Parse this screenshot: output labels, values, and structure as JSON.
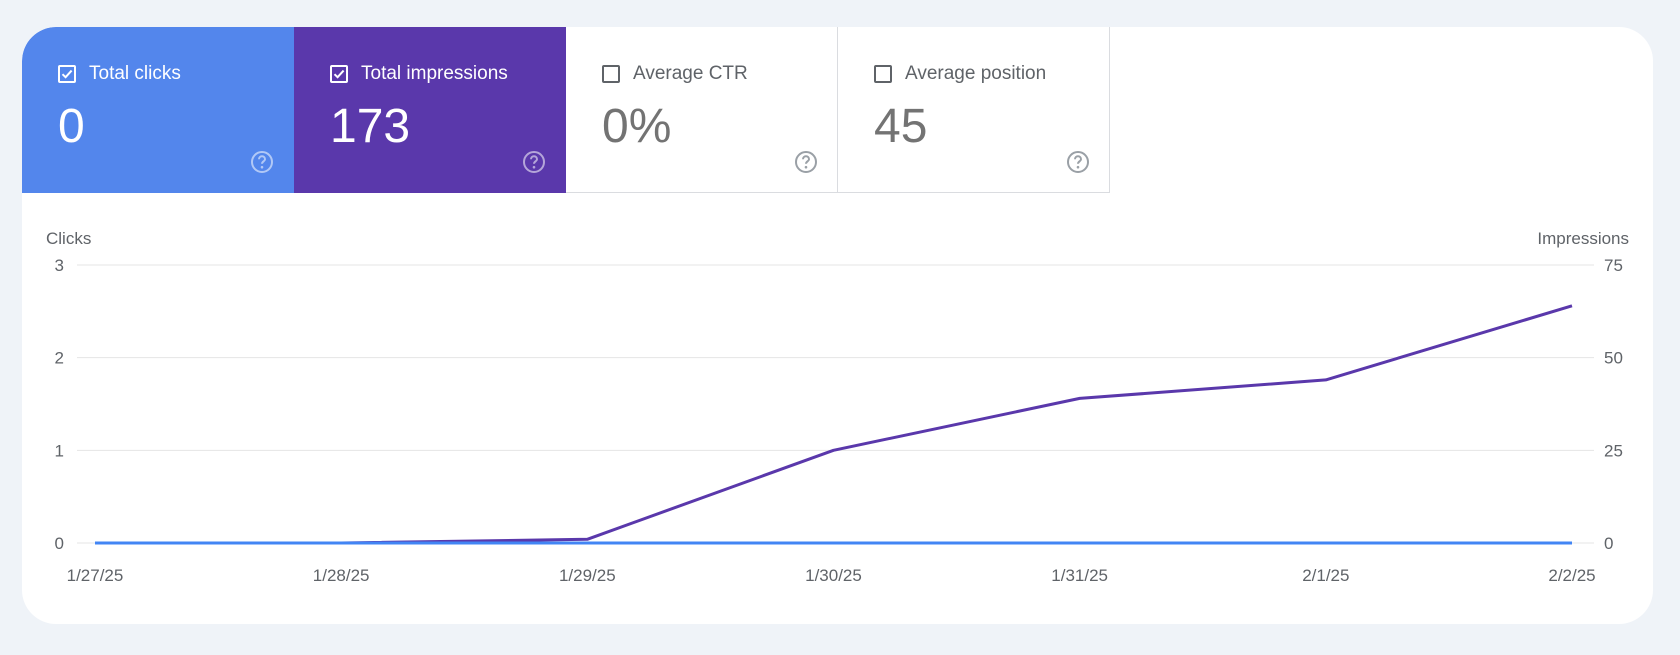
{
  "metrics": [
    {
      "label": "Total clicks",
      "value": "0",
      "checked": true,
      "color": "#5386ec"
    },
    {
      "label": "Total impressions",
      "value": "173",
      "checked": true,
      "color": "#5a38ab"
    },
    {
      "label": "Average CTR",
      "value": "0%",
      "checked": false
    },
    {
      "label": "Average position",
      "value": "45",
      "checked": false
    }
  ],
  "help_icon": "help-circle-icon",
  "chart_data": {
    "type": "line",
    "x": [
      "1/27/25",
      "1/28/25",
      "1/29/25",
      "1/30/25",
      "1/31/25",
      "2/1/25",
      "2/2/25"
    ],
    "series": [
      {
        "name": "Clicks",
        "axis": "left",
        "color": "#4285f4",
        "values": [
          0,
          0,
          0,
          0,
          0,
          0,
          0
        ]
      },
      {
        "name": "Impressions",
        "axis": "right",
        "color": "#5a38ab",
        "values": [
          0,
          0,
          1,
          25,
          39,
          44,
          64
        ]
      }
    ],
    "ylabel_left": "Clicks",
    "ylabel_right": "Impressions",
    "yticks_left": [
      "0",
      "1",
      "2",
      "3"
    ],
    "yticks_right": [
      "0",
      "25",
      "50",
      "75"
    ],
    "ylim_left": [
      0,
      3
    ],
    "ylim_right": [
      0,
      75
    ],
    "grid": true
  }
}
